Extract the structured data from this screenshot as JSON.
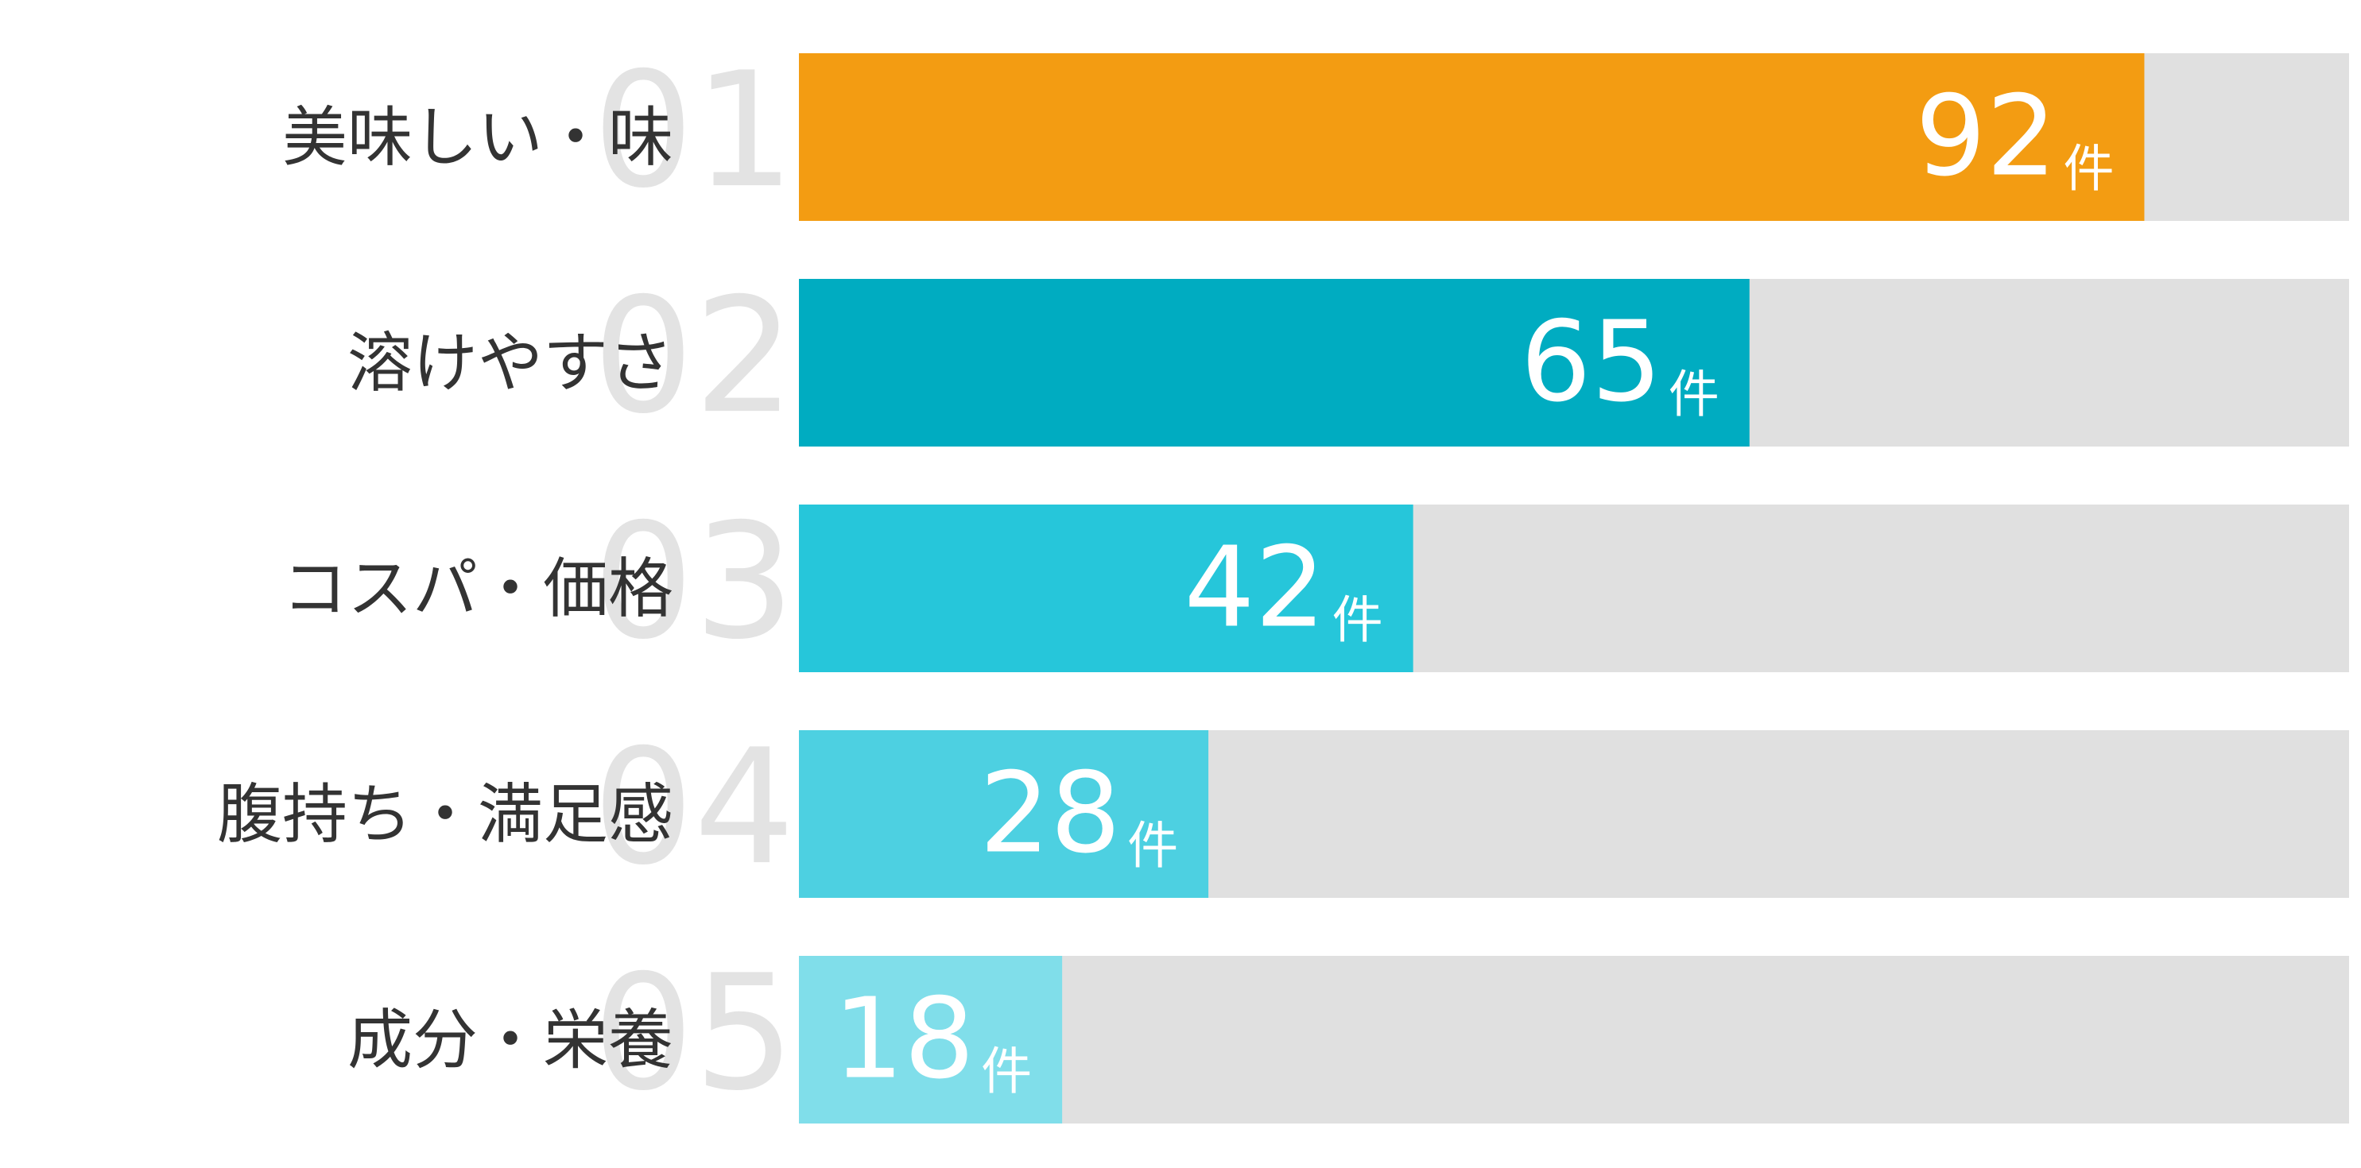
{
  "chart_data": {
    "type": "bar",
    "categories": [
      "美味しい・味",
      "溶けやすさ",
      "コスパ・価格",
      "腹持ち・満足感",
      "成分・栄養"
    ],
    "ranks": [
      "01",
      "02",
      "03",
      "04",
      "05"
    ],
    "values": [
      92,
      65,
      42,
      28,
      18
    ],
    "unit": "件",
    "colors": [
      "#f39c12",
      "#00acc1",
      "#26c6da",
      "#4dd0e1",
      "#80deea"
    ],
    "track_color": "#e0e0e0",
    "xlim": [
      0,
      106
    ]
  }
}
